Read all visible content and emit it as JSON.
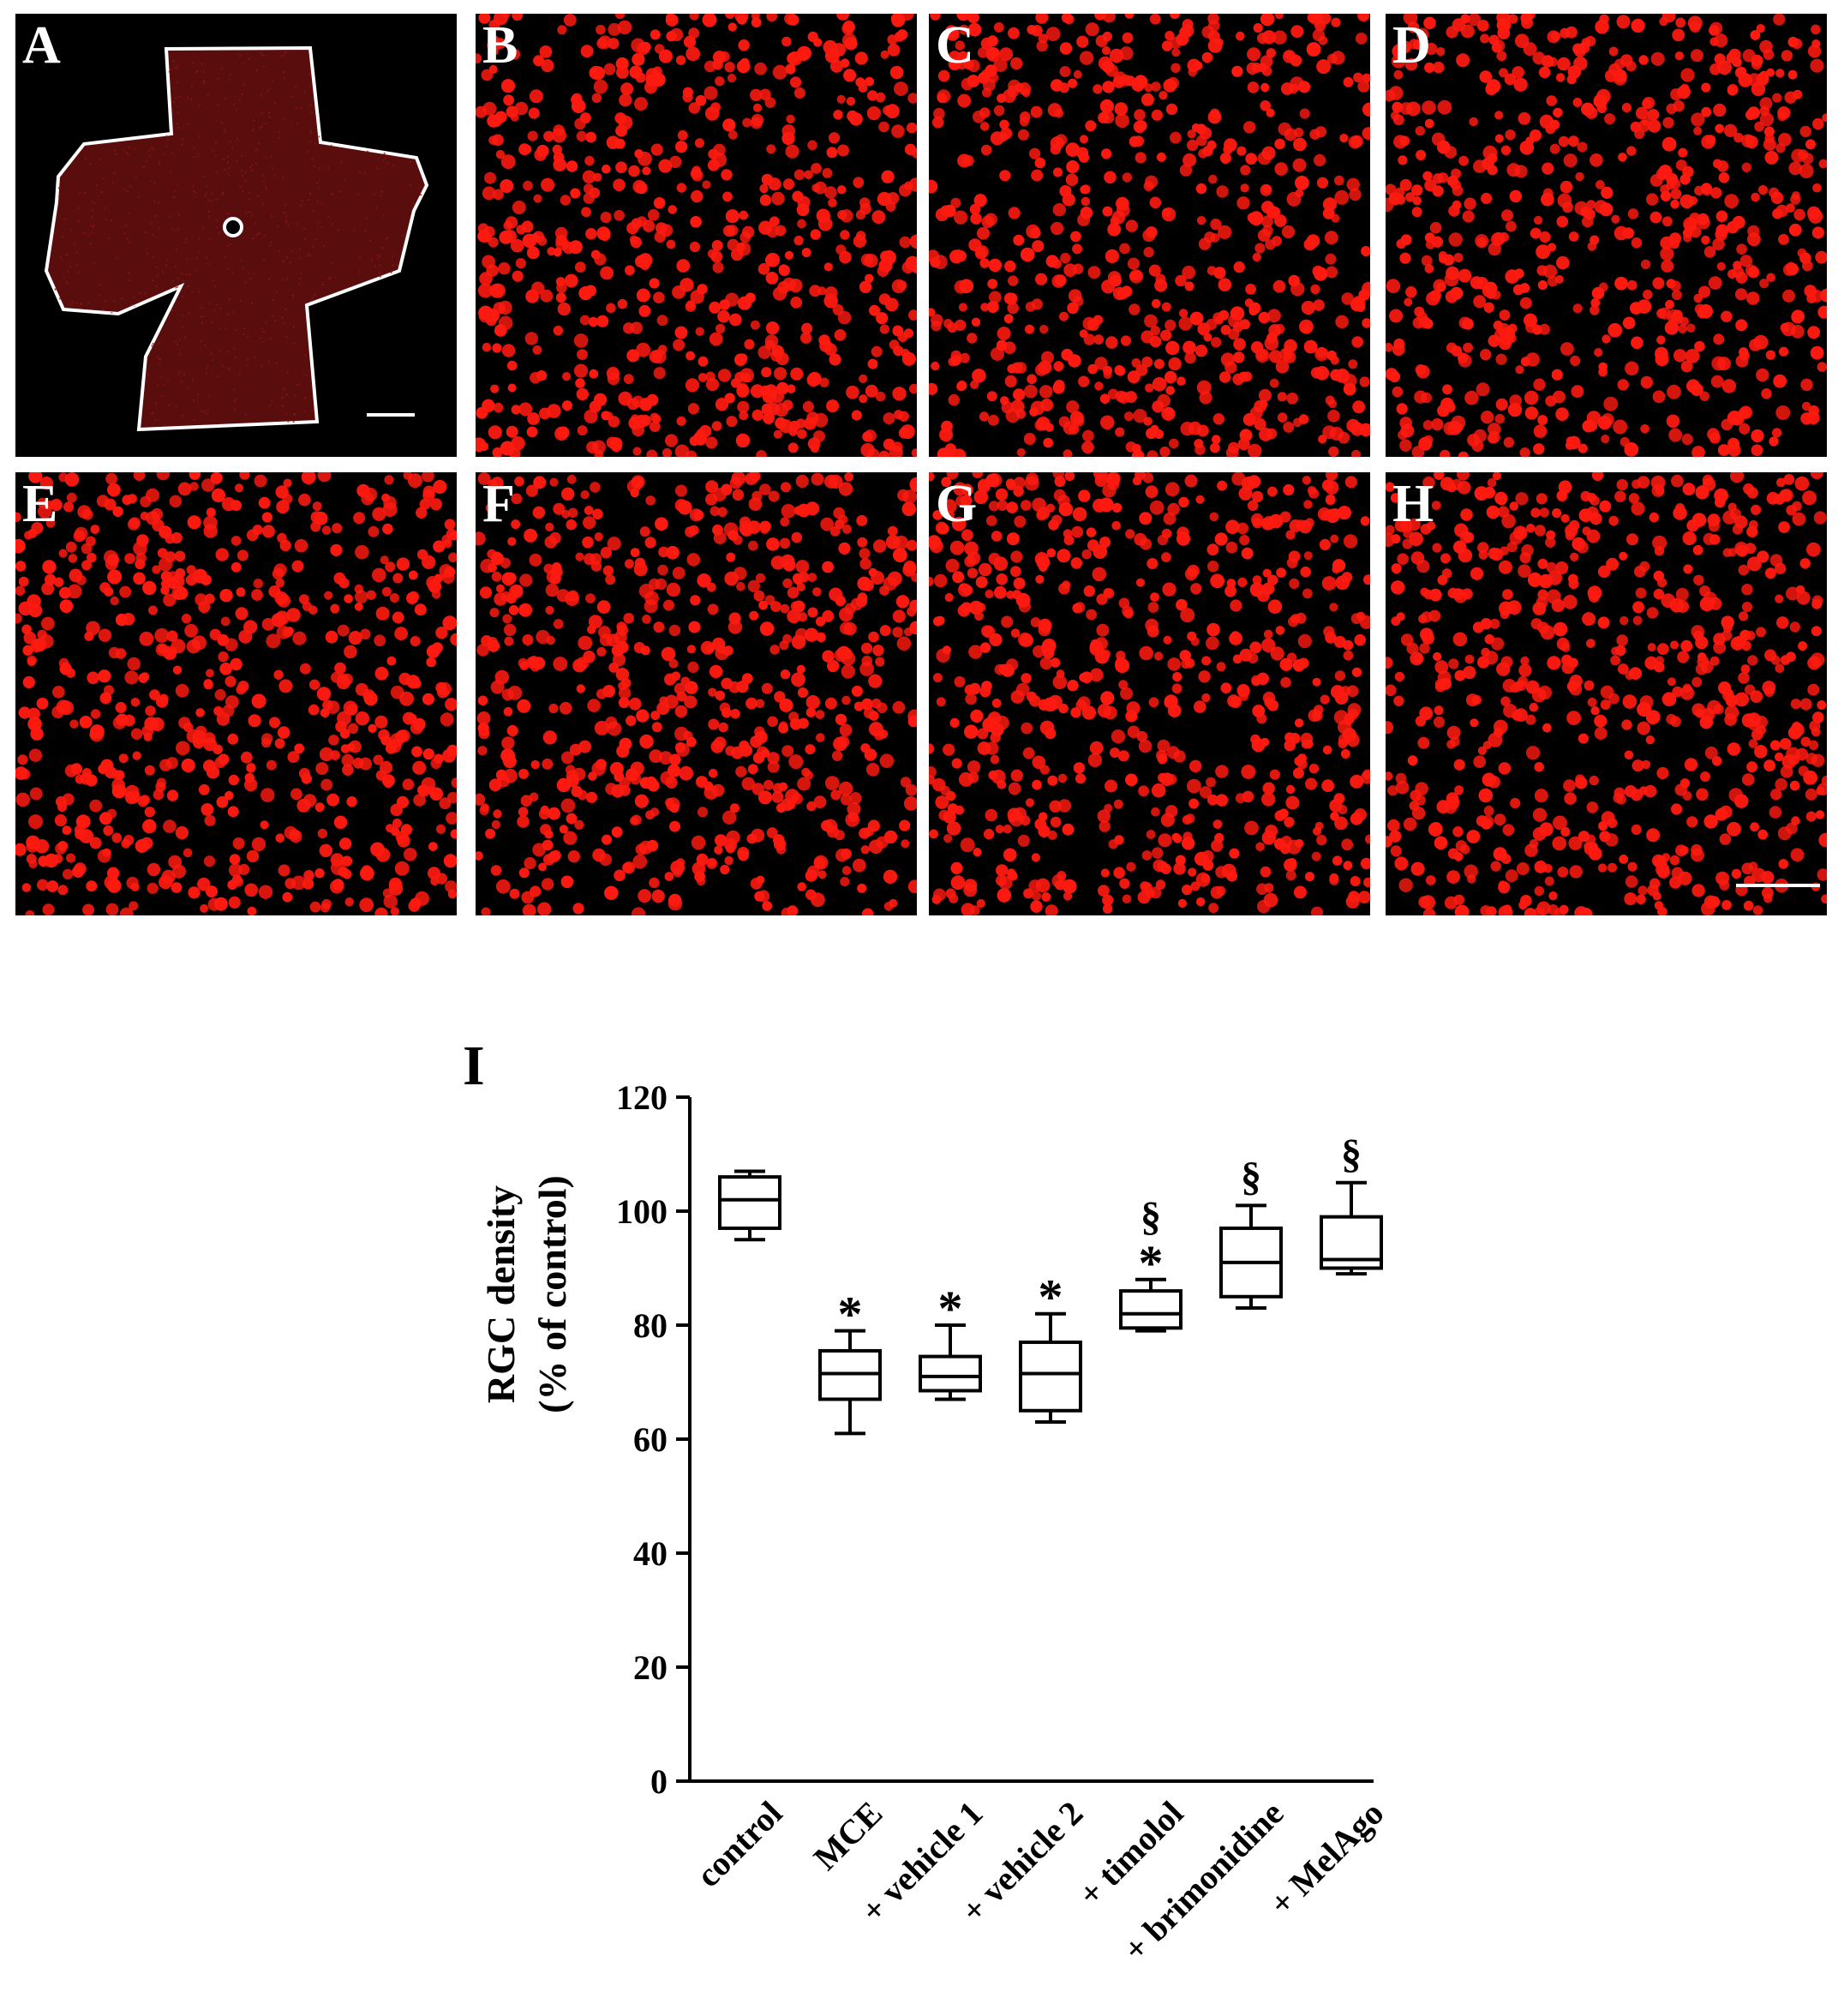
{
  "figure": {
    "panels": [
      {
        "letter": "A"
      },
      {
        "letter": "B"
      },
      {
        "letter": "C"
      },
      {
        "letter": "D"
      },
      {
        "letter": "E"
      },
      {
        "letter": "F"
      },
      {
        "letter": "G"
      },
      {
        "letter": "H"
      }
    ],
    "colors": {
      "cell": "#ff1a10",
      "background": "#000000",
      "retina": "#5a0d0d",
      "outline": "#ffffff"
    },
    "chart_panel_letter": "I"
  },
  "chart_data": {
    "type": "box",
    "ylabel_line1": "RGC density",
    "ylabel_line2": "(% of control)",
    "ylim": [
      0,
      120
    ],
    "yticks": [
      "0",
      "20",
      "40",
      "60",
      "80",
      "100",
      "120"
    ],
    "categories": [
      "control",
      "MCE",
      "+ vehicle 1",
      "+ vehicle 2",
      "+ timolol",
      "+ brimonidine",
      "+ MelAgo"
    ],
    "boxes": [
      {
        "min": 95,
        "q1": 97,
        "median": 102,
        "q3": 106,
        "max": 107,
        "marks": []
      },
      {
        "min": 61,
        "q1": 67,
        "median": 71.5,
        "q3": 75.5,
        "max": 79,
        "marks": [
          "*"
        ]
      },
      {
        "min": 67,
        "q1": 68.5,
        "median": 71,
        "q3": 74.5,
        "max": 80,
        "marks": [
          "*"
        ]
      },
      {
        "min": 63,
        "q1": 65,
        "median": 71.5,
        "q3": 77,
        "max": 82,
        "marks": [
          "*"
        ]
      },
      {
        "min": 79,
        "q1": 79.5,
        "median": 82,
        "q3": 86,
        "max": 88,
        "marks": [
          "*",
          "§"
        ]
      },
      {
        "min": 83,
        "q1": 85,
        "median": 91,
        "q3": 97,
        "max": 101,
        "marks": [
          "§"
        ]
      },
      {
        "min": 89,
        "q1": 90,
        "median": 91.5,
        "q3": 99,
        "max": 105,
        "marks": [
          "§"
        ]
      }
    ]
  }
}
